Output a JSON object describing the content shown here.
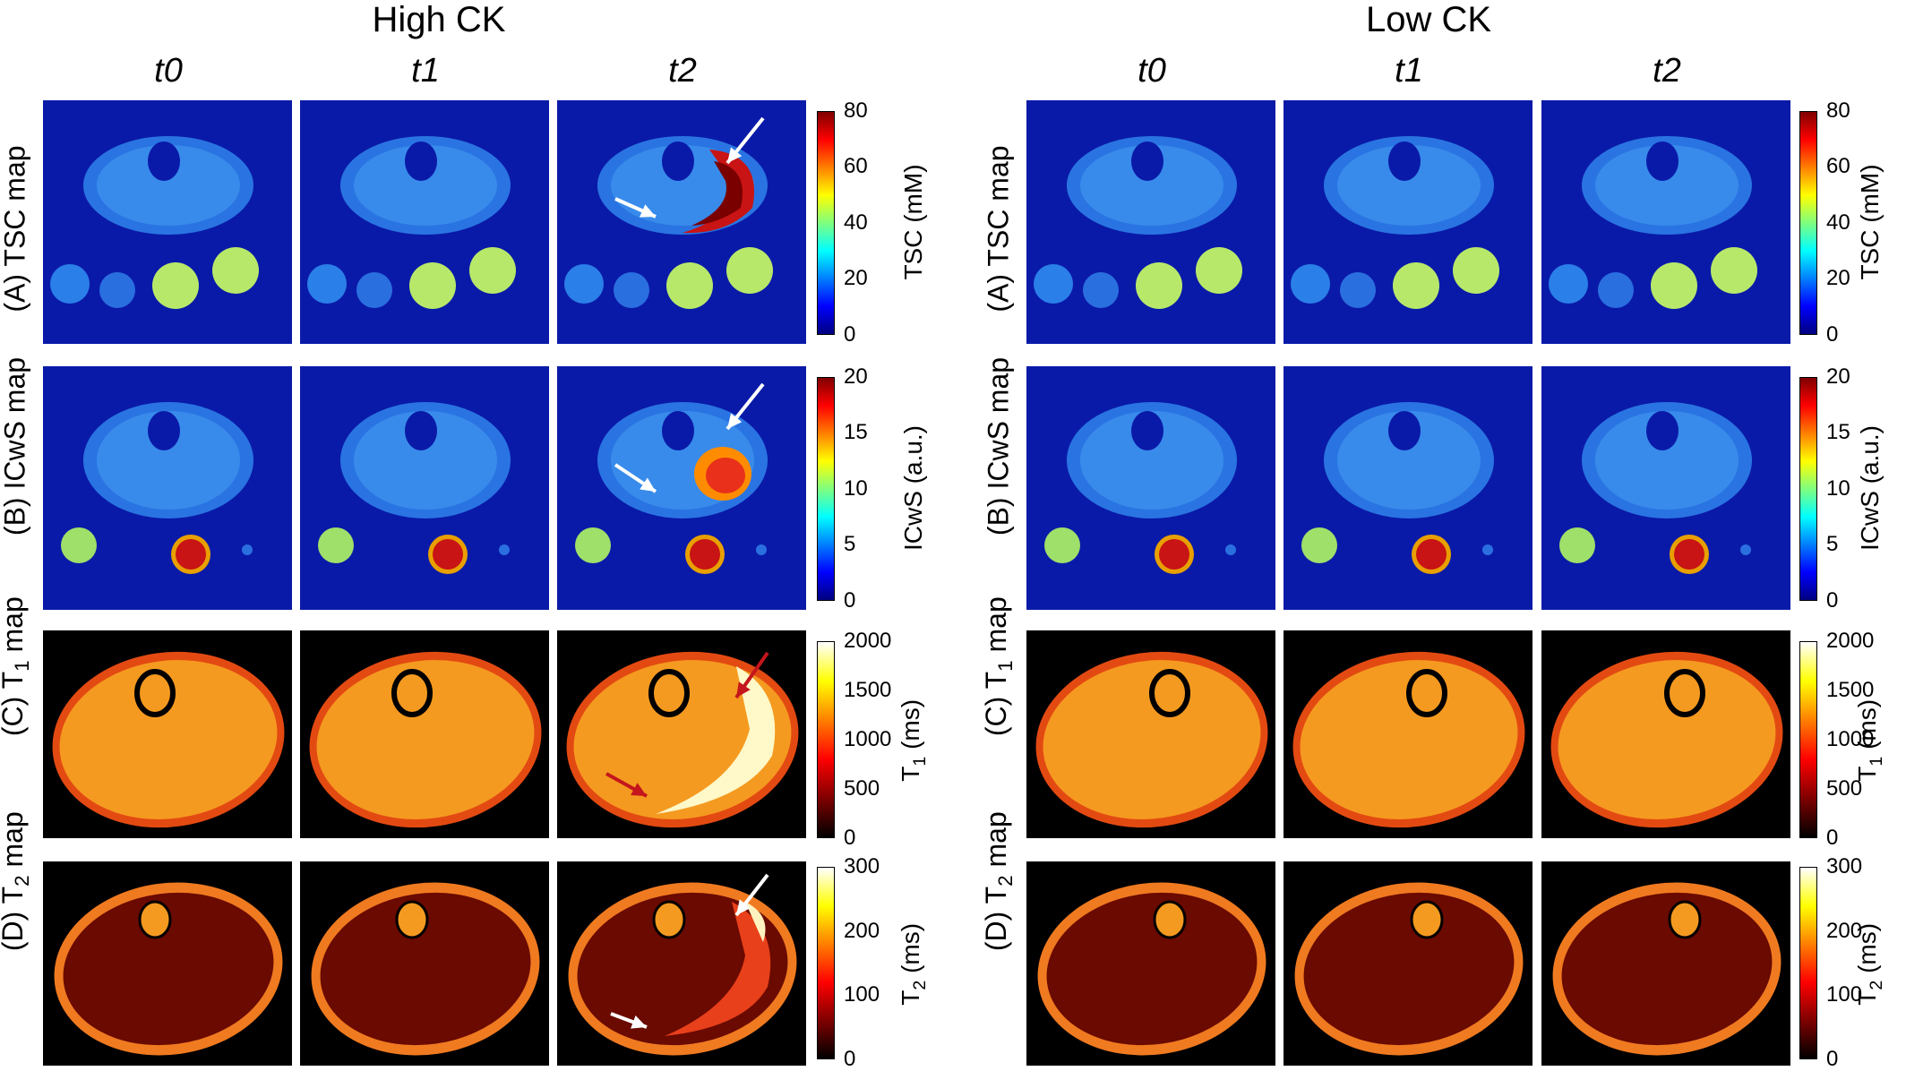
{
  "groups": [
    {
      "title": "High CK",
      "columns": [
        "t0",
        "t1",
        "t2"
      ]
    },
    {
      "title": "Low CK",
      "columns": [
        "t0",
        "t1",
        "t2"
      ]
    }
  ],
  "rows": [
    {
      "label": "(A) TSC map",
      "colorbar": {
        "label": "TSC (mM)",
        "ticks": [
          "80",
          "60",
          "40",
          "20",
          "0"
        ],
        "scheme": "jet"
      }
    },
    {
      "label": "(B) ICwS map",
      "colorbar": {
        "label": "ICwS (a.u.)",
        "ticks": [
          "20",
          "15",
          "10",
          "5",
          "0"
        ],
        "scheme": "jet"
      }
    },
    {
      "label_prefix": "(C) T",
      "label_sub": "1",
      "label_suffix": " map",
      "colorbar": {
        "label_prefix": "T",
        "label_sub": "1",
        "label_suffix": " (ms)",
        "ticks": [
          "2000",
          "1500",
          "1000",
          "500",
          "0"
        ],
        "scheme": "hot"
      }
    },
    {
      "label_prefix": "(D) T",
      "label_sub": "2",
      "label_suffix": " map",
      "colorbar": {
        "label_prefix": "T",
        "label_sub": "2",
        "label_suffix": " (ms)",
        "ticks": [
          "300",
          "200",
          "100",
          "0"
        ],
        "scheme": "hot"
      }
    }
  ],
  "colors": {
    "jet_bg": "#0a1aa8",
    "hot_bg": "#000000",
    "white_arrow": "#ffffff",
    "red_arrow": "#c4161c"
  }
}
